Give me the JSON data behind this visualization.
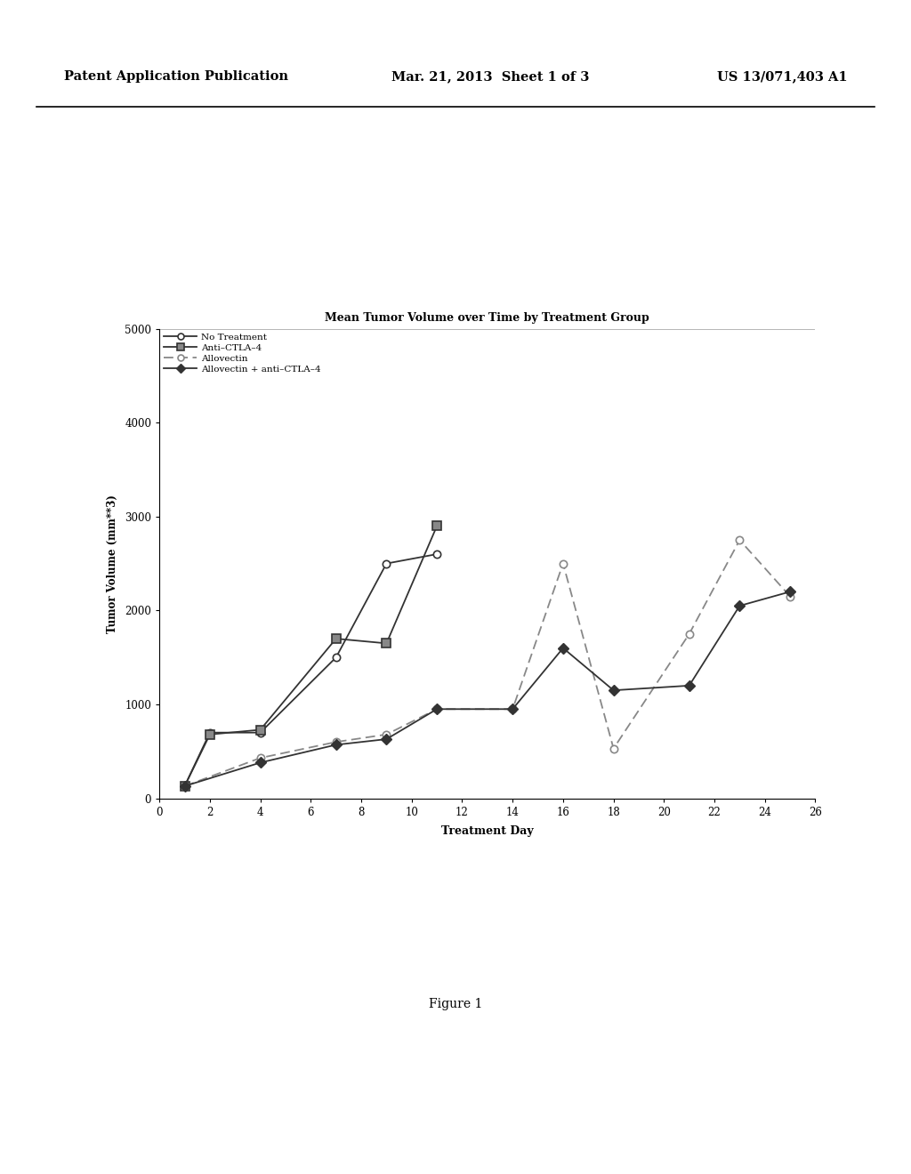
{
  "title": "Mean Tumor Volume over Time by Treatment Group",
  "xlabel": "Treatment Day",
  "ylabel": "Tumor Volume (mm**3)",
  "xlim": [
    0,
    26
  ],
  "ylim": [
    0,
    5000
  ],
  "xticks": [
    0,
    2,
    4,
    6,
    8,
    10,
    12,
    14,
    16,
    18,
    20,
    22,
    24,
    26
  ],
  "yticks": [
    0,
    1000,
    2000,
    3000,
    4000,
    5000
  ],
  "no_treatment": {
    "x": [
      1,
      2,
      4,
      7,
      9,
      11
    ],
    "y": [
      130,
      700,
      700,
      1500,
      2500,
      2600
    ],
    "label": "No Treatment"
  },
  "anti_ctla4": {
    "x": [
      1,
      2,
      4,
      7,
      9,
      11
    ],
    "y": [
      130,
      680,
      730,
      1700,
      1650,
      2900
    ],
    "label": "Anti–CTLA–4"
  },
  "allovectin": {
    "x": [
      1,
      4,
      7,
      9,
      11,
      14,
      16,
      18,
      21,
      23,
      25
    ],
    "y": [
      130,
      430,
      600,
      680,
      950,
      950,
      2500,
      530,
      1750,
      2750,
      2150
    ],
    "label": "Allovectin"
  },
  "combo": {
    "x": [
      1,
      4,
      7,
      9,
      11,
      14,
      16,
      18,
      21,
      23,
      25
    ],
    "y": [
      130,
      380,
      570,
      630,
      950,
      950,
      1600,
      1150,
      1200,
      2050,
      2200
    ],
    "label": "Allovectin + anti–CTLA–4"
  },
  "figure_label": "Figure 1",
  "header_left": "Patent Application Publication",
  "header_center": "Mar. 21, 2013  Sheet 1 of 3",
  "header_right": "US 13/071,403 A1",
  "background_color": "#ffffff"
}
